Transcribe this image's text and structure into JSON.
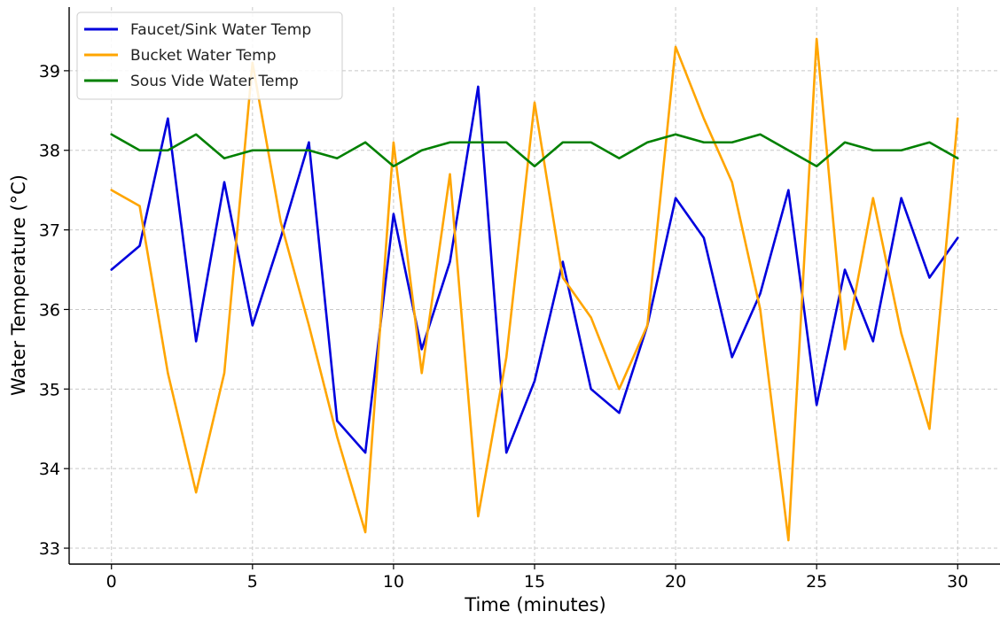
{
  "chart_data": {
    "type": "line",
    "title": "",
    "xlabel": "Time (minutes)",
    "ylabel": "Water Temperature (°C)",
    "xlim": [
      -1.5,
      31.5
    ],
    "ylim": [
      32.8,
      39.8
    ],
    "x_ticks": [
      0,
      5,
      10,
      15,
      20,
      25,
      30
    ],
    "y_ticks": [
      33,
      34,
      35,
      36,
      37,
      38,
      39
    ],
    "grid": true,
    "legend_position": "top-left",
    "x": [
      0,
      1,
      2,
      3,
      4,
      5,
      6,
      7,
      8,
      9,
      10,
      11,
      12,
      13,
      14,
      15,
      16,
      17,
      18,
      19,
      20,
      21,
      22,
      23,
      24,
      25,
      26,
      27,
      28,
      29,
      30
    ],
    "series": [
      {
        "name": "Faucet/Sink Water Temp",
        "color": "#0000dd",
        "values": [
          36.5,
          36.8,
          38.4,
          35.6,
          37.6,
          35.8,
          36.9,
          38.1,
          34.6,
          34.2,
          37.2,
          35.5,
          36.6,
          38.8,
          34.2,
          35.1,
          36.6,
          35.0,
          34.7,
          35.8,
          37.4,
          36.9,
          35.4,
          36.2,
          37.5,
          34.8,
          36.5,
          35.6,
          37.4,
          36.4,
          36.9
        ]
      },
      {
        "name": "Bucket Water Temp",
        "color": "#ffa500",
        "values": [
          37.5,
          37.3,
          35.2,
          33.7,
          35.2,
          39.1,
          37.1,
          35.8,
          34.4,
          33.2,
          38.1,
          35.2,
          37.7,
          33.4,
          35.4,
          38.6,
          36.4,
          35.9,
          35.0,
          35.8,
          39.3,
          38.4,
          37.6,
          36.0,
          33.1,
          39.4,
          35.5,
          37.4,
          35.7,
          34.5,
          38.4
        ]
      },
      {
        "name": "Sous Vide Water Temp",
        "color": "#008000",
        "values": [
          38.2,
          38.0,
          38.0,
          38.2,
          37.9,
          38.0,
          38.0,
          38.0,
          37.9,
          38.1,
          37.8,
          38.0,
          38.1,
          38.1,
          38.1,
          37.8,
          38.1,
          38.1,
          37.9,
          38.1,
          38.2,
          38.1,
          38.1,
          38.2,
          38.0,
          37.8,
          38.1,
          38.0,
          38.0,
          38.1,
          37.9
        ]
      }
    ]
  }
}
